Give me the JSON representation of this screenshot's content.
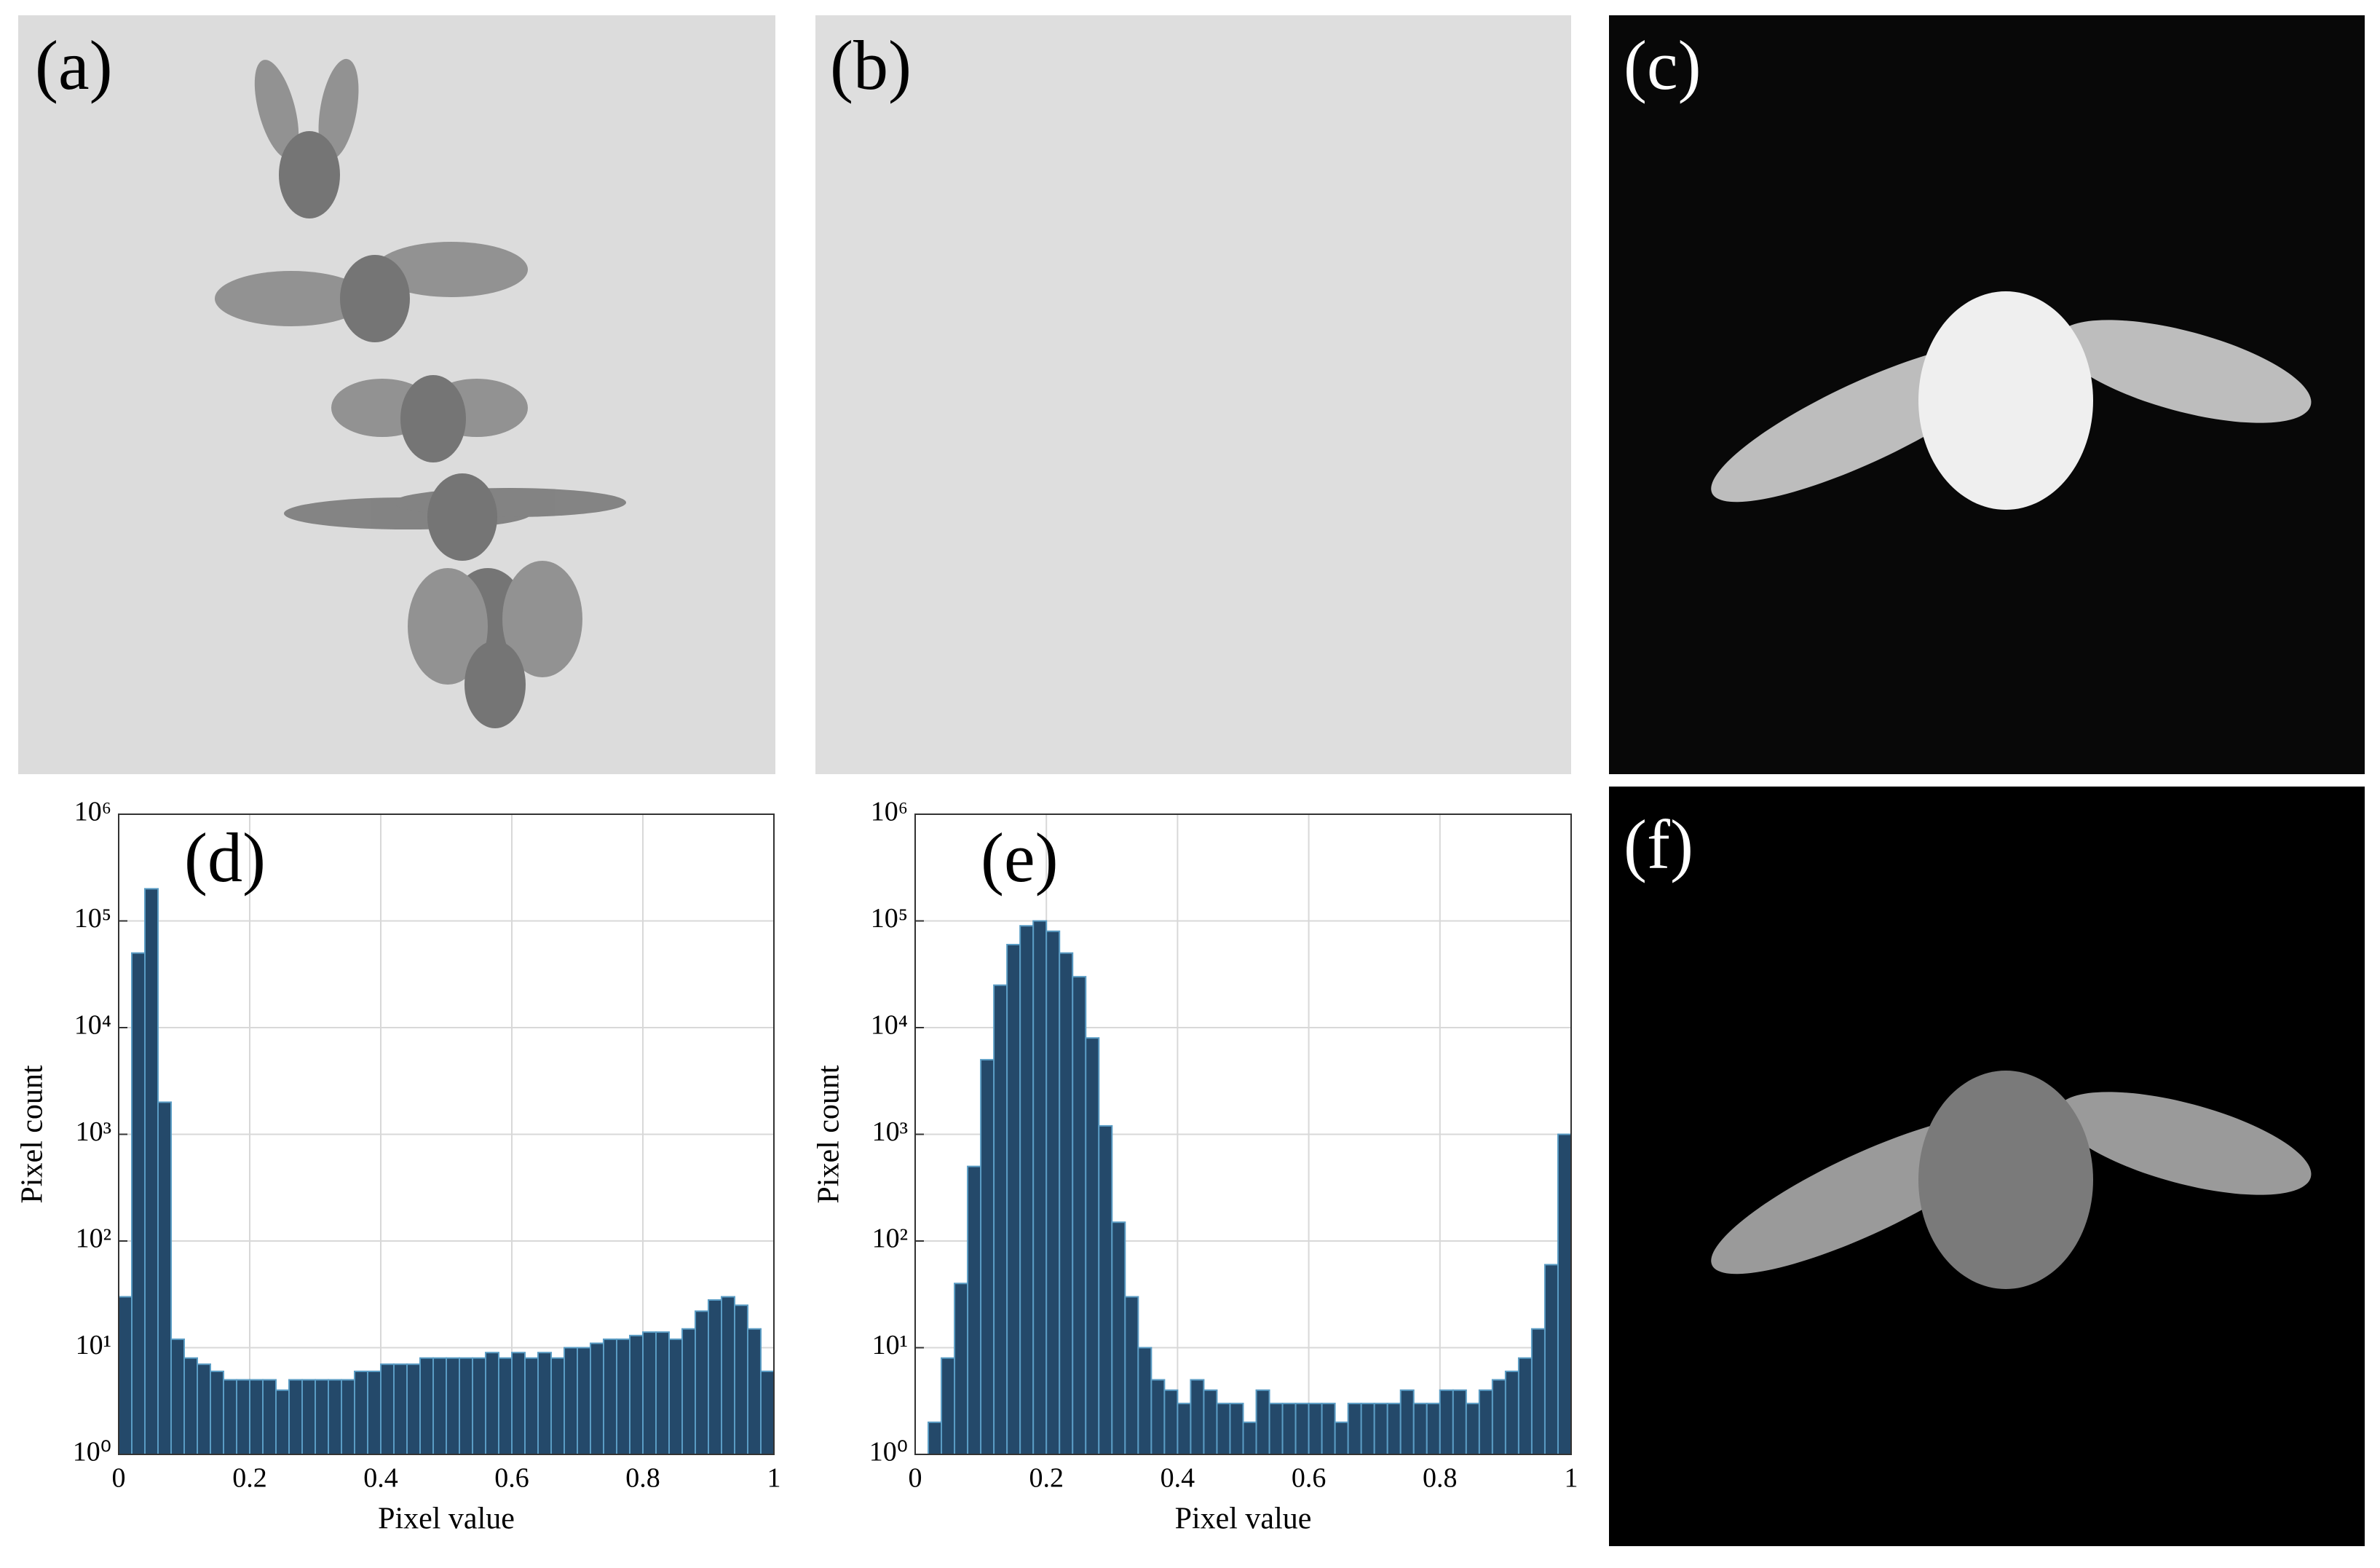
{
  "panels": [
    "(a)",
    "(b)",
    "(c)",
    "(f)"
  ],
  "chart_data": [
    {
      "type": "histogram",
      "annotation": "(d)",
      "xlabel": "Pixel value",
      "ylabel": "Pixel count",
      "color": "#24496a",
      "edgecolor": "#5a9cc4",
      "log_y": true,
      "grid": true,
      "bins": [
        0,
        0.02,
        0.04,
        0.06,
        0.08,
        0.1,
        0.12,
        0.14,
        0.16,
        0.18,
        0.2,
        0.22,
        0.24,
        0.26,
        0.28,
        0.3,
        0.32,
        0.34,
        0.36,
        0.38,
        0.4,
        0.42,
        0.44,
        0.46,
        0.48,
        0.5,
        0.52,
        0.54,
        0.56,
        0.58,
        0.6,
        0.62,
        0.64,
        0.66,
        0.68,
        0.7,
        0.72,
        0.74,
        0.76,
        0.78,
        0.8,
        0.82,
        0.84,
        0.86,
        0.88,
        0.9,
        0.92,
        0.94,
        0.96,
        0.98,
        1
      ],
      "values": [
        30,
        50000,
        200000,
        2000,
        12,
        8,
        7,
        6,
        5,
        5,
        5,
        5,
        4,
        5,
        5,
        5,
        5,
        5,
        6,
        6,
        7,
        7,
        7,
        8,
        8,
        8,
        8,
        8,
        9,
        8,
        9,
        8,
        9,
        8,
        10,
        10,
        11,
        12,
        12,
        13,
        14,
        14,
        12,
        15,
        22,
        28,
        30,
        25,
        15,
        6
      ],
      "xlim": [
        0,
        1
      ],
      "xticks": [
        0,
        0.2,
        0.4,
        0.6,
        0.8,
        1
      ],
      "ylim": [
        1,
        1000000
      ],
      "yticks": [
        {
          "value": 1,
          "label": "10⁰"
        },
        {
          "value": 10,
          "label": "10¹"
        },
        {
          "value": 100,
          "label": "10²"
        },
        {
          "value": 1000,
          "label": "10³"
        },
        {
          "value": 10000,
          "label": "10⁴"
        },
        {
          "value": 100000,
          "label": "10⁵"
        },
        {
          "value": 1000000,
          "label": "10⁶"
        }
      ]
    },
    {
      "type": "histogram",
      "annotation": "(e)",
      "xlabel": "Pixel value",
      "ylabel": "Pixel count",
      "color": "#24496a",
      "edgecolor": "#5a9cc4",
      "log_y": true,
      "grid": true,
      "bins": [
        0,
        0.02,
        0.04,
        0.06,
        0.08,
        0.1,
        0.12,
        0.14,
        0.16,
        0.18,
        0.2,
        0.22,
        0.24,
        0.26,
        0.28,
        0.3,
        0.32,
        0.34,
        0.36,
        0.38,
        0.4,
        0.42,
        0.44,
        0.46,
        0.48,
        0.5,
        0.52,
        0.54,
        0.56,
        0.58,
        0.6,
        0.62,
        0.64,
        0.66,
        0.68,
        0.7,
        0.72,
        0.74,
        0.76,
        0.78,
        0.8,
        0.82,
        0.84,
        0.86,
        0.88,
        0.9,
        0.92,
        0.94,
        0.96,
        0.98,
        1
      ],
      "values": [
        1,
        2,
        8,
        40,
        500,
        5000,
        25000,
        60000,
        90000,
        100000,
        80000,
        50000,
        30000,
        8000,
        1200,
        150,
        30,
        10,
        5,
        4,
        3,
        5,
        4,
        3,
        3,
        2,
        4,
        3,
        3,
        3,
        3,
        3,
        2,
        3,
        3,
        3,
        3,
        4,
        3,
        3,
        4,
        4,
        3,
        4,
        5,
        6,
        8,
        15,
        60,
        1000
      ],
      "xlim": [
        0,
        1
      ],
      "xticks": [
        0,
        0.2,
        0.4,
        0.6,
        0.8,
        1
      ],
      "ylim": [
        1,
        1000000
      ],
      "yticks": [
        {
          "value": 1,
          "label": "10⁰"
        },
        {
          "value": 10,
          "label": "10¹"
        },
        {
          "value": 100,
          "label": "10²"
        },
        {
          "value": 1000,
          "label": "10³"
        },
        {
          "value": 10000,
          "label": "10⁴"
        },
        {
          "value": 100000,
          "label": "10⁵"
        },
        {
          "value": 1000000,
          "label": "10⁶"
        }
      ]
    }
  ]
}
